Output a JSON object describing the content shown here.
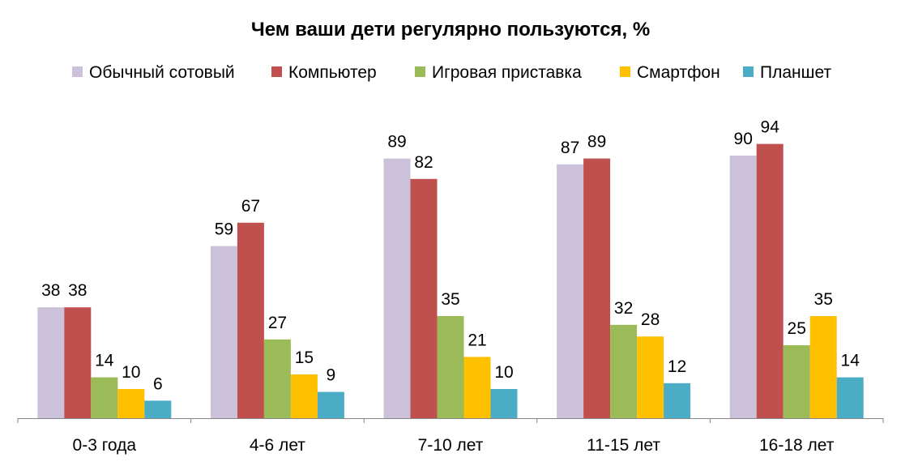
{
  "chart_data": {
    "type": "bar",
    "title": "Чем ваши дети регулярно пользуются, %",
    "xlabel": "",
    "ylabel": "",
    "categories": [
      "0-3 года",
      "4-6 лет",
      "7-10 лет",
      "11-15 лет",
      "16-18 лет"
    ],
    "series": [
      {
        "name": "Обычный сотовый",
        "color": "#CCC1DA",
        "values": [
          38,
          59,
          89,
          87,
          90
        ]
      },
      {
        "name": "Компьютер",
        "color": "#C0504D",
        "values": [
          38,
          67,
          82,
          89,
          94
        ]
      },
      {
        "name": "Игровая приставка",
        "color": "#9BBB59",
        "values": [
          14,
          27,
          35,
          32,
          25
        ]
      },
      {
        "name": "Смартфон",
        "color": "#FFC000",
        "values": [
          10,
          15,
          21,
          28,
          35
        ]
      },
      {
        "name": "Планшет",
        "color": "#4BACC6",
        "values": [
          6,
          9,
          10,
          12,
          14
        ]
      }
    ],
    "ylim": [
      0,
      105
    ],
    "grid": false,
    "legend_position": "top"
  }
}
